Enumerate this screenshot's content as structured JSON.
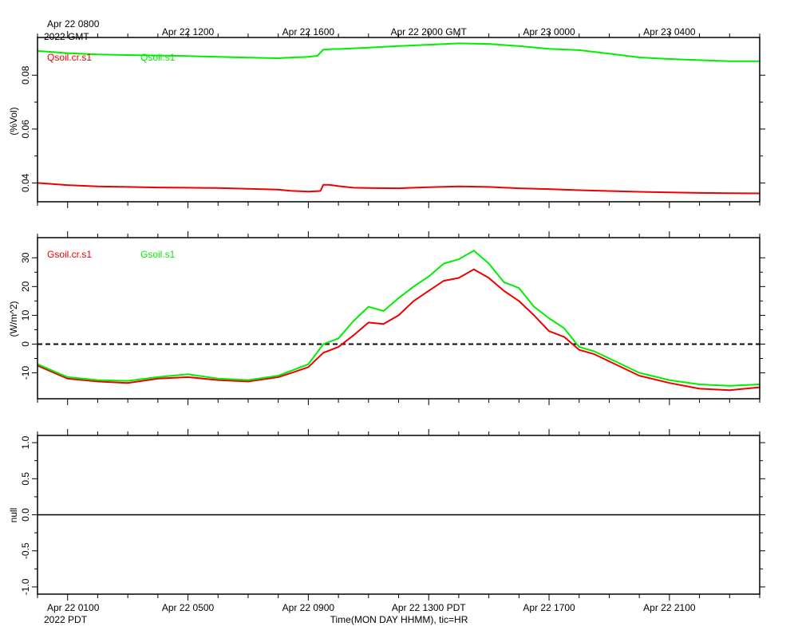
{
  "top_time_axis": {
    "start_label_line1": "Apr 22 0800",
    "start_label_line2": "2022 GMT",
    "labels": [
      {
        "hour": 4,
        "text": "Apr 22 1200"
      },
      {
        "hour": 8,
        "text": "Apr 22 1600"
      },
      {
        "hour": 12,
        "text": "Apr 22 2000 GMT"
      },
      {
        "hour": 16,
        "text": "Apr 23 0000"
      },
      {
        "hour": 20,
        "text": "Apr 23 0400"
      }
    ]
  },
  "bottom_time_axis": {
    "start_label_line1": "Apr 22 0100",
    "start_label_line2": "2022 PDT",
    "labels": [
      {
        "hour": 4,
        "text": "Apr 22 0500"
      },
      {
        "hour": 8,
        "text": "Apr 22 0900"
      },
      {
        "hour": 12,
        "text": "Apr 22 1300 PDT"
      },
      {
        "hour": 16,
        "text": "Apr 22 1700"
      },
      {
        "hour": 20,
        "text": "Apr 22 2100"
      }
    ],
    "xlabel": "Time(MON DAY HHMM), tic=HR"
  },
  "colors": {
    "cr": "#ee0000",
    "s1": "#00ee00",
    "frame": "#000000"
  },
  "chart_data": [
    {
      "type": "line",
      "ylabel": "(%Vol)",
      "xlim_hours": [
        -1,
        23
      ],
      "ylim": [
        0.033,
        0.094
      ],
      "yticks": [
        0.04,
        0.06,
        0.08
      ],
      "ytick_labels": [
        "0.04",
        "0.06",
        "0.08"
      ],
      "series": [
        {
          "name": "Qsoil.cr.s1",
          "color": "#ee0000",
          "x": [
            -1,
            0,
            1,
            2,
            3,
            4,
            5,
            6,
            7,
            7.4,
            8,
            8.4,
            8.5,
            8.7,
            9,
            9.5,
            10,
            11,
            12,
            13,
            14,
            15,
            16,
            17,
            18,
            19,
            20,
            21,
            22,
            23
          ],
          "y": [
            0.04,
            0.0392,
            0.0387,
            0.0385,
            0.0383,
            0.0382,
            0.0381,
            0.0378,
            0.0375,
            0.0371,
            0.0368,
            0.037,
            0.0393,
            0.0393,
            0.0388,
            0.0382,
            0.0381,
            0.038,
            0.0384,
            0.0387,
            0.0385,
            0.038,
            0.0377,
            0.0373,
            0.037,
            0.0367,
            0.0365,
            0.0363,
            0.0362,
            0.0361
          ]
        },
        {
          "name": "Qsoil.s1",
          "color": "#00ee00",
          "x": [
            -1,
            0,
            1,
            2,
            3,
            4,
            5,
            6,
            7,
            7.5,
            8,
            8.3,
            8.5,
            8.8,
            9,
            10,
            11,
            12,
            13,
            14,
            15,
            16,
            17,
            18,
            19,
            20,
            21,
            22,
            23
          ],
          "y": [
            0.089,
            0.0882,
            0.0877,
            0.0875,
            0.0873,
            0.0871,
            0.0868,
            0.0865,
            0.0863,
            0.0866,
            0.0868,
            0.0872,
            0.0895,
            0.0897,
            0.0897,
            0.0902,
            0.0908,
            0.0913,
            0.0918,
            0.0916,
            0.0908,
            0.0898,
            0.0893,
            0.088,
            0.0866,
            0.086,
            0.0856,
            0.0852,
            0.0852
          ]
        }
      ]
    },
    {
      "type": "line",
      "ylabel": "(W/m^2)",
      "xlim_hours": [
        -1,
        23
      ],
      "ylim": [
        -19,
        37
      ],
      "yticks": [
        -10,
        0,
        10,
        20,
        30
      ],
      "ytick_labels": [
        "-10",
        "0",
        "10",
        "20",
        "30"
      ],
      "reference_line": 0,
      "series": [
        {
          "name": "Gsoil.cr.s1",
          "color": "#ee0000",
          "x": [
            -1,
            0,
            1,
            2,
            3,
            4,
            5,
            6,
            7,
            7.5,
            8,
            8.5,
            9,
            9.5,
            10,
            10.5,
            11,
            11.5,
            12,
            12.5,
            13,
            13.5,
            14,
            14.5,
            15,
            15.5,
            16,
            16.5,
            17,
            17.5,
            18,
            19,
            20,
            21,
            22,
            23
          ],
          "y": [
            -7.5,
            -12.0,
            -13.0,
            -13.5,
            -12.0,
            -11.5,
            -12.5,
            -13.0,
            -11.5,
            -9.8,
            -8.0,
            -3.0,
            -1.0,
            3.0,
            7.5,
            7.0,
            10.0,
            15.0,
            18.5,
            22.0,
            23.0,
            26.0,
            23.0,
            18.5,
            15.0,
            10.0,
            4.5,
            2.5,
            -2.0,
            -3.5,
            -6.0,
            -11.0,
            -13.5,
            -15.5,
            -16.0,
            -15.0
          ]
        },
        {
          "name": "Gsoil.s1",
          "color": "#00ee00",
          "x": [
            -1,
            0,
            1,
            2,
            3,
            4,
            5,
            6,
            7,
            7.5,
            8,
            8.5,
            9,
            9.5,
            10,
            10.5,
            11,
            11.5,
            12,
            12.5,
            13,
            13.5,
            14,
            14.5,
            15,
            15.5,
            16,
            16.5,
            17,
            17.5,
            18,
            19,
            20,
            21,
            22,
            23
          ],
          "y": [
            -7.0,
            -11.5,
            -12.5,
            -12.8,
            -11.5,
            -10.5,
            -12.0,
            -12.5,
            -11.0,
            -9.0,
            -7.0,
            0.0,
            2.0,
            8.0,
            13.0,
            11.5,
            16.0,
            20.0,
            23.5,
            28.0,
            29.5,
            32.5,
            28.0,
            21.5,
            19.5,
            13.0,
            9.0,
            5.5,
            -1.0,
            -2.5,
            -5.0,
            -10.0,
            -12.5,
            -14.0,
            -14.5,
            -14.0
          ]
        }
      ]
    },
    {
      "type": "line",
      "ylabel": "null",
      "xlim_hours": [
        -1,
        23
      ],
      "ylim": [
        -1.1,
        1.1
      ],
      "yticks": [
        -1.0,
        -0.5,
        0.0,
        0.5,
        1.0
      ],
      "ytick_labels": [
        "-1.0",
        "-0.5",
        "0.0",
        "0.5",
        "1.0"
      ],
      "reference_line_solid": 0,
      "series": []
    }
  ]
}
